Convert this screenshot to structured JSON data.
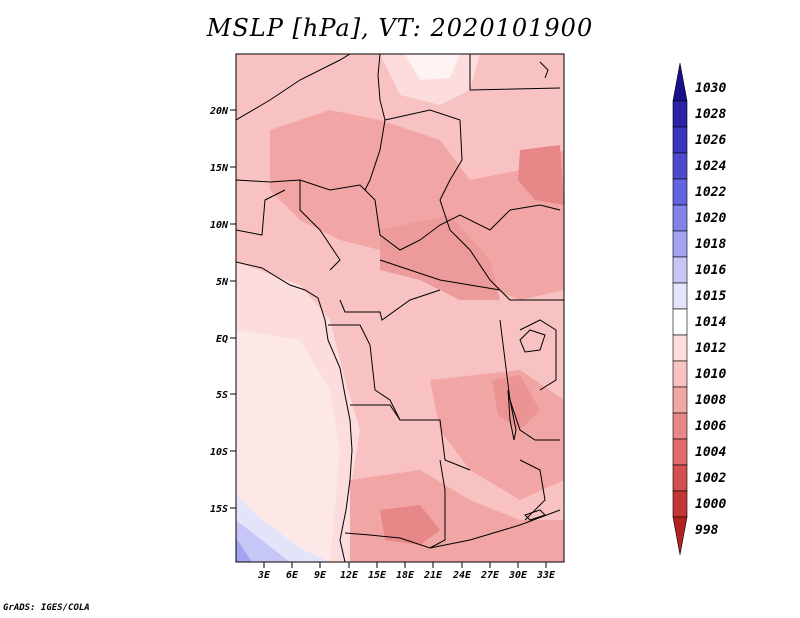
{
  "title": "MSLP [hPa], VT: 2020101900",
  "credit": "GrADS: IGES/COLA",
  "map": {
    "lat_labels": [
      "20N",
      "15N",
      "10N",
      "5N",
      "EQ",
      "5S",
      "10S",
      "15S"
    ],
    "lon_labels": [
      "3E",
      "6E",
      "9E",
      "12E",
      "15E",
      "18E",
      "21E",
      "24E",
      "27E",
      "30E",
      "33E"
    ]
  },
  "colorbar": {
    "labels": [
      "1030",
      "1028",
      "1026",
      "1024",
      "1022",
      "1020",
      "1018",
      "1016",
      "1015",
      "1014",
      "1012",
      "1010",
      "1008",
      "1006",
      "1004",
      "1002",
      "1000",
      "998"
    ],
    "colors": [
      "#1a0f8a",
      "#2a21a6",
      "#3a35bd",
      "#4d4ad0",
      "#6564e0",
      "#8483ea",
      "#a4a4f2",
      "#c6c6f7",
      "#e3e3fa",
      "#ffffff",
      "#fcdcdc",
      "#f8c2c2",
      "#f2a5a5",
      "#e88787",
      "#df6a6a",
      "#d44f4f",
      "#c53636",
      "#b22222"
    ],
    "top_arrow_color": "#1a0f8a",
    "bottom_arrow_color": "#b22222"
  }
}
